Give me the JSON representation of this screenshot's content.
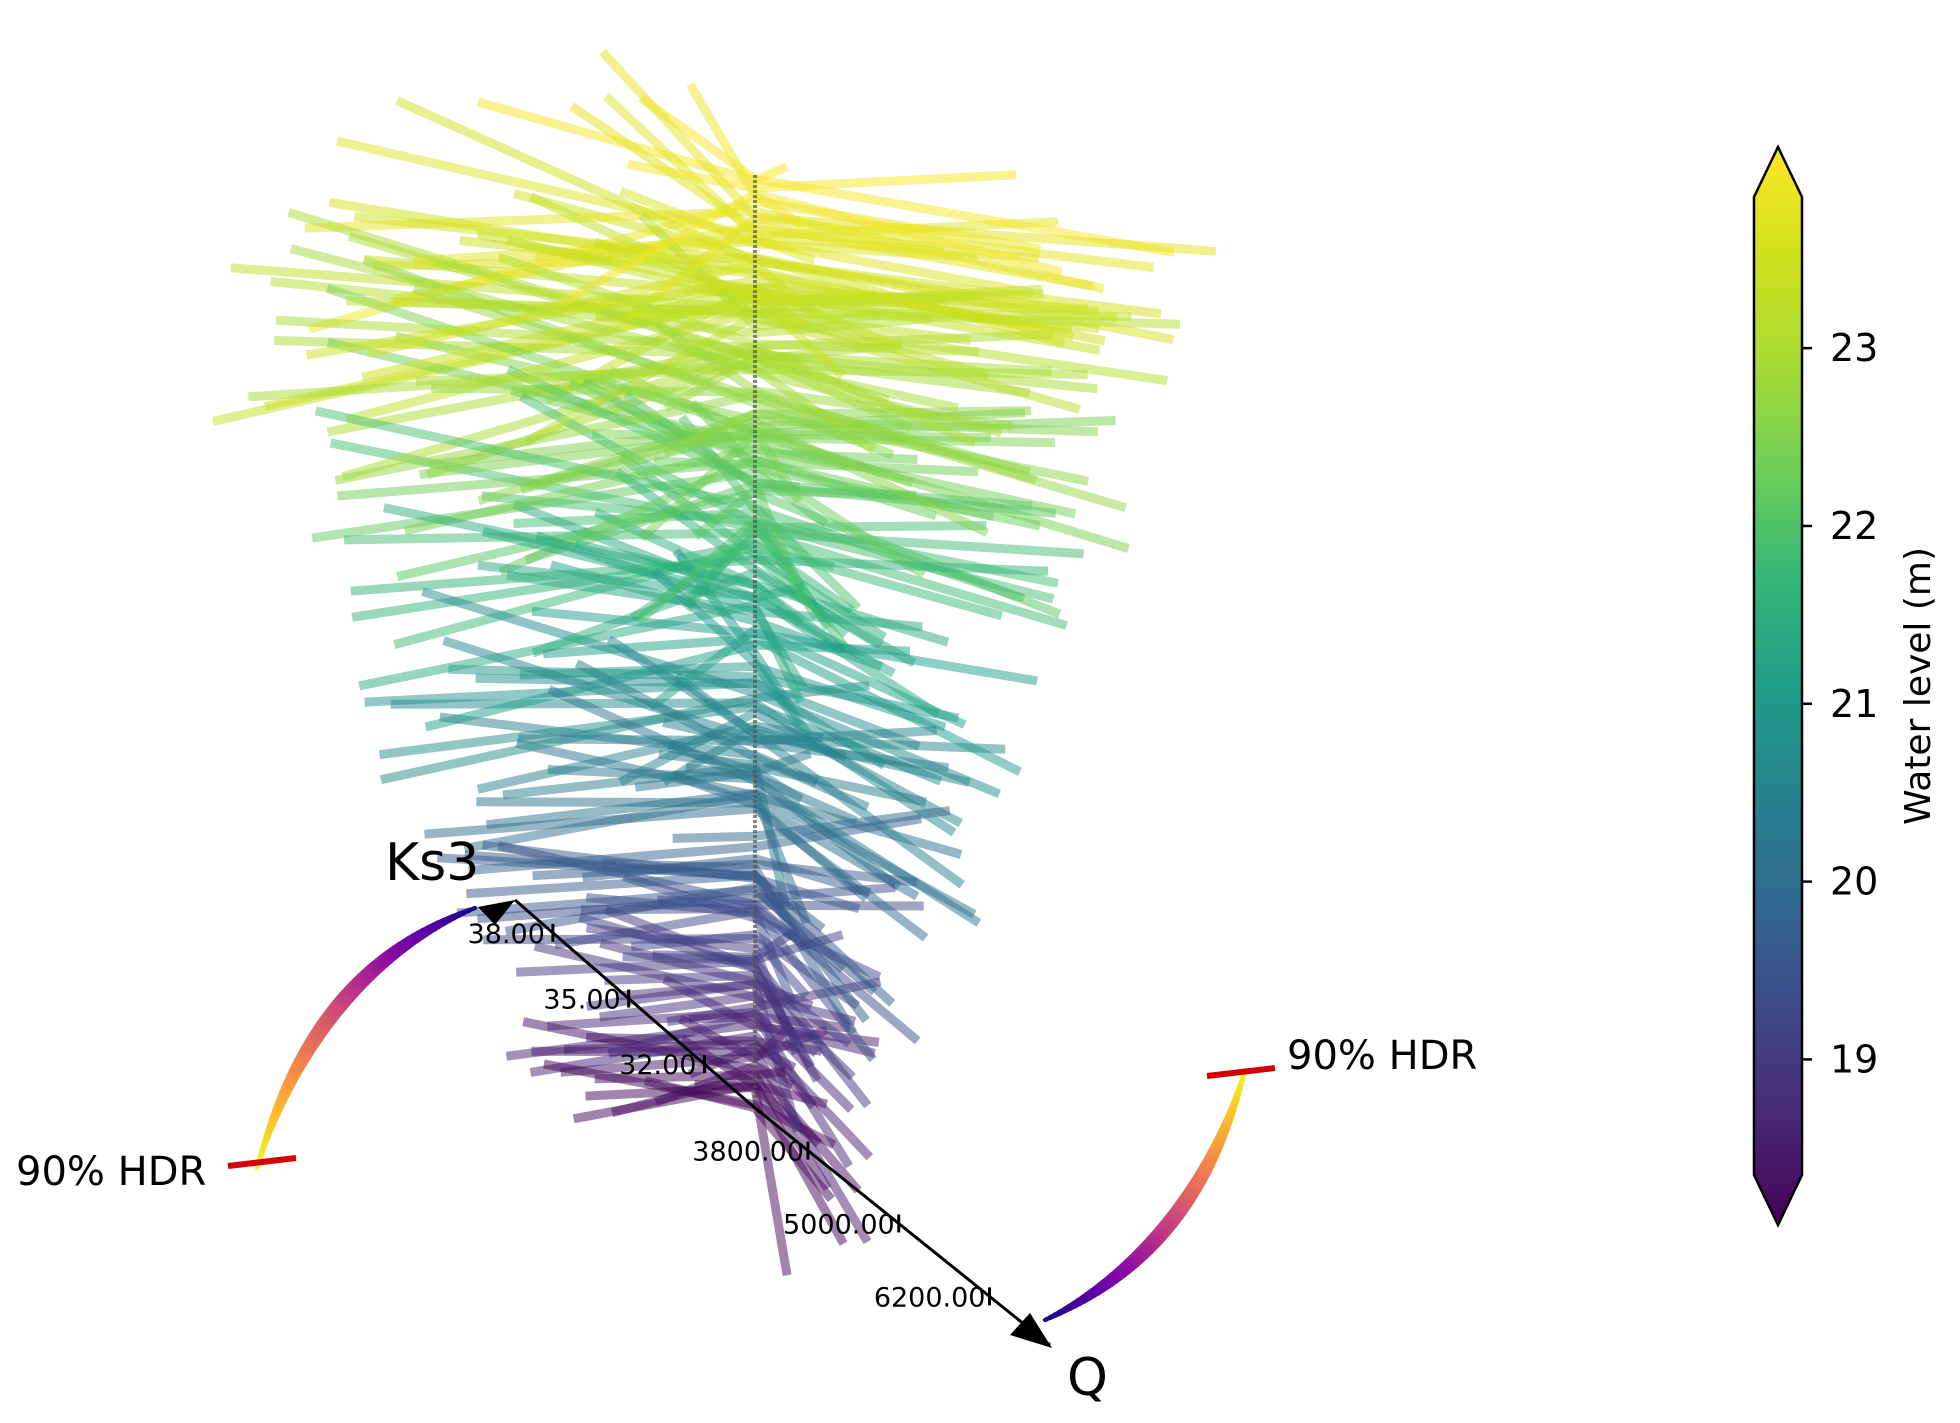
{
  "chart_data": {
    "type": "line",
    "description_axes": {
      "vertical_axis": "Water level (m)",
      "diagonal_axis_1": "Ks3",
      "diagonal_axis_2": "Q"
    },
    "axes": {
      "ks3": {
        "label": "Ks3",
        "ticks": [
          "32.00",
          "35.00",
          "38.00"
        ],
        "range": [
          30.0,
          39.5
        ]
      },
      "q": {
        "label": "Q",
        "ticks": [
          "3800.00",
          "5000.00",
          "6200.00"
        ],
        "range": [
          3100,
          7000
        ]
      }
    },
    "hdr": {
      "left_label": "90% HDR",
      "right_label": "90% HDR",
      "marker_color": "#d40000"
    },
    "colorbar": {
      "label": "Water level (m)",
      "ticks": [
        "19",
        "20",
        "21",
        "22",
        "23"
      ],
      "tick_values": [
        19,
        20,
        21,
        22,
        23
      ],
      "range": [
        18.35,
        23.85
      ],
      "colormap": "viridis",
      "extend": "both"
    },
    "series_summary": {
      "count": 210,
      "ks3_range": [
        30.5,
        39.0
      ],
      "q_range": [
        3400,
        6600
      ],
      "water_level_range": [
        18.4,
        23.8
      ]
    }
  }
}
